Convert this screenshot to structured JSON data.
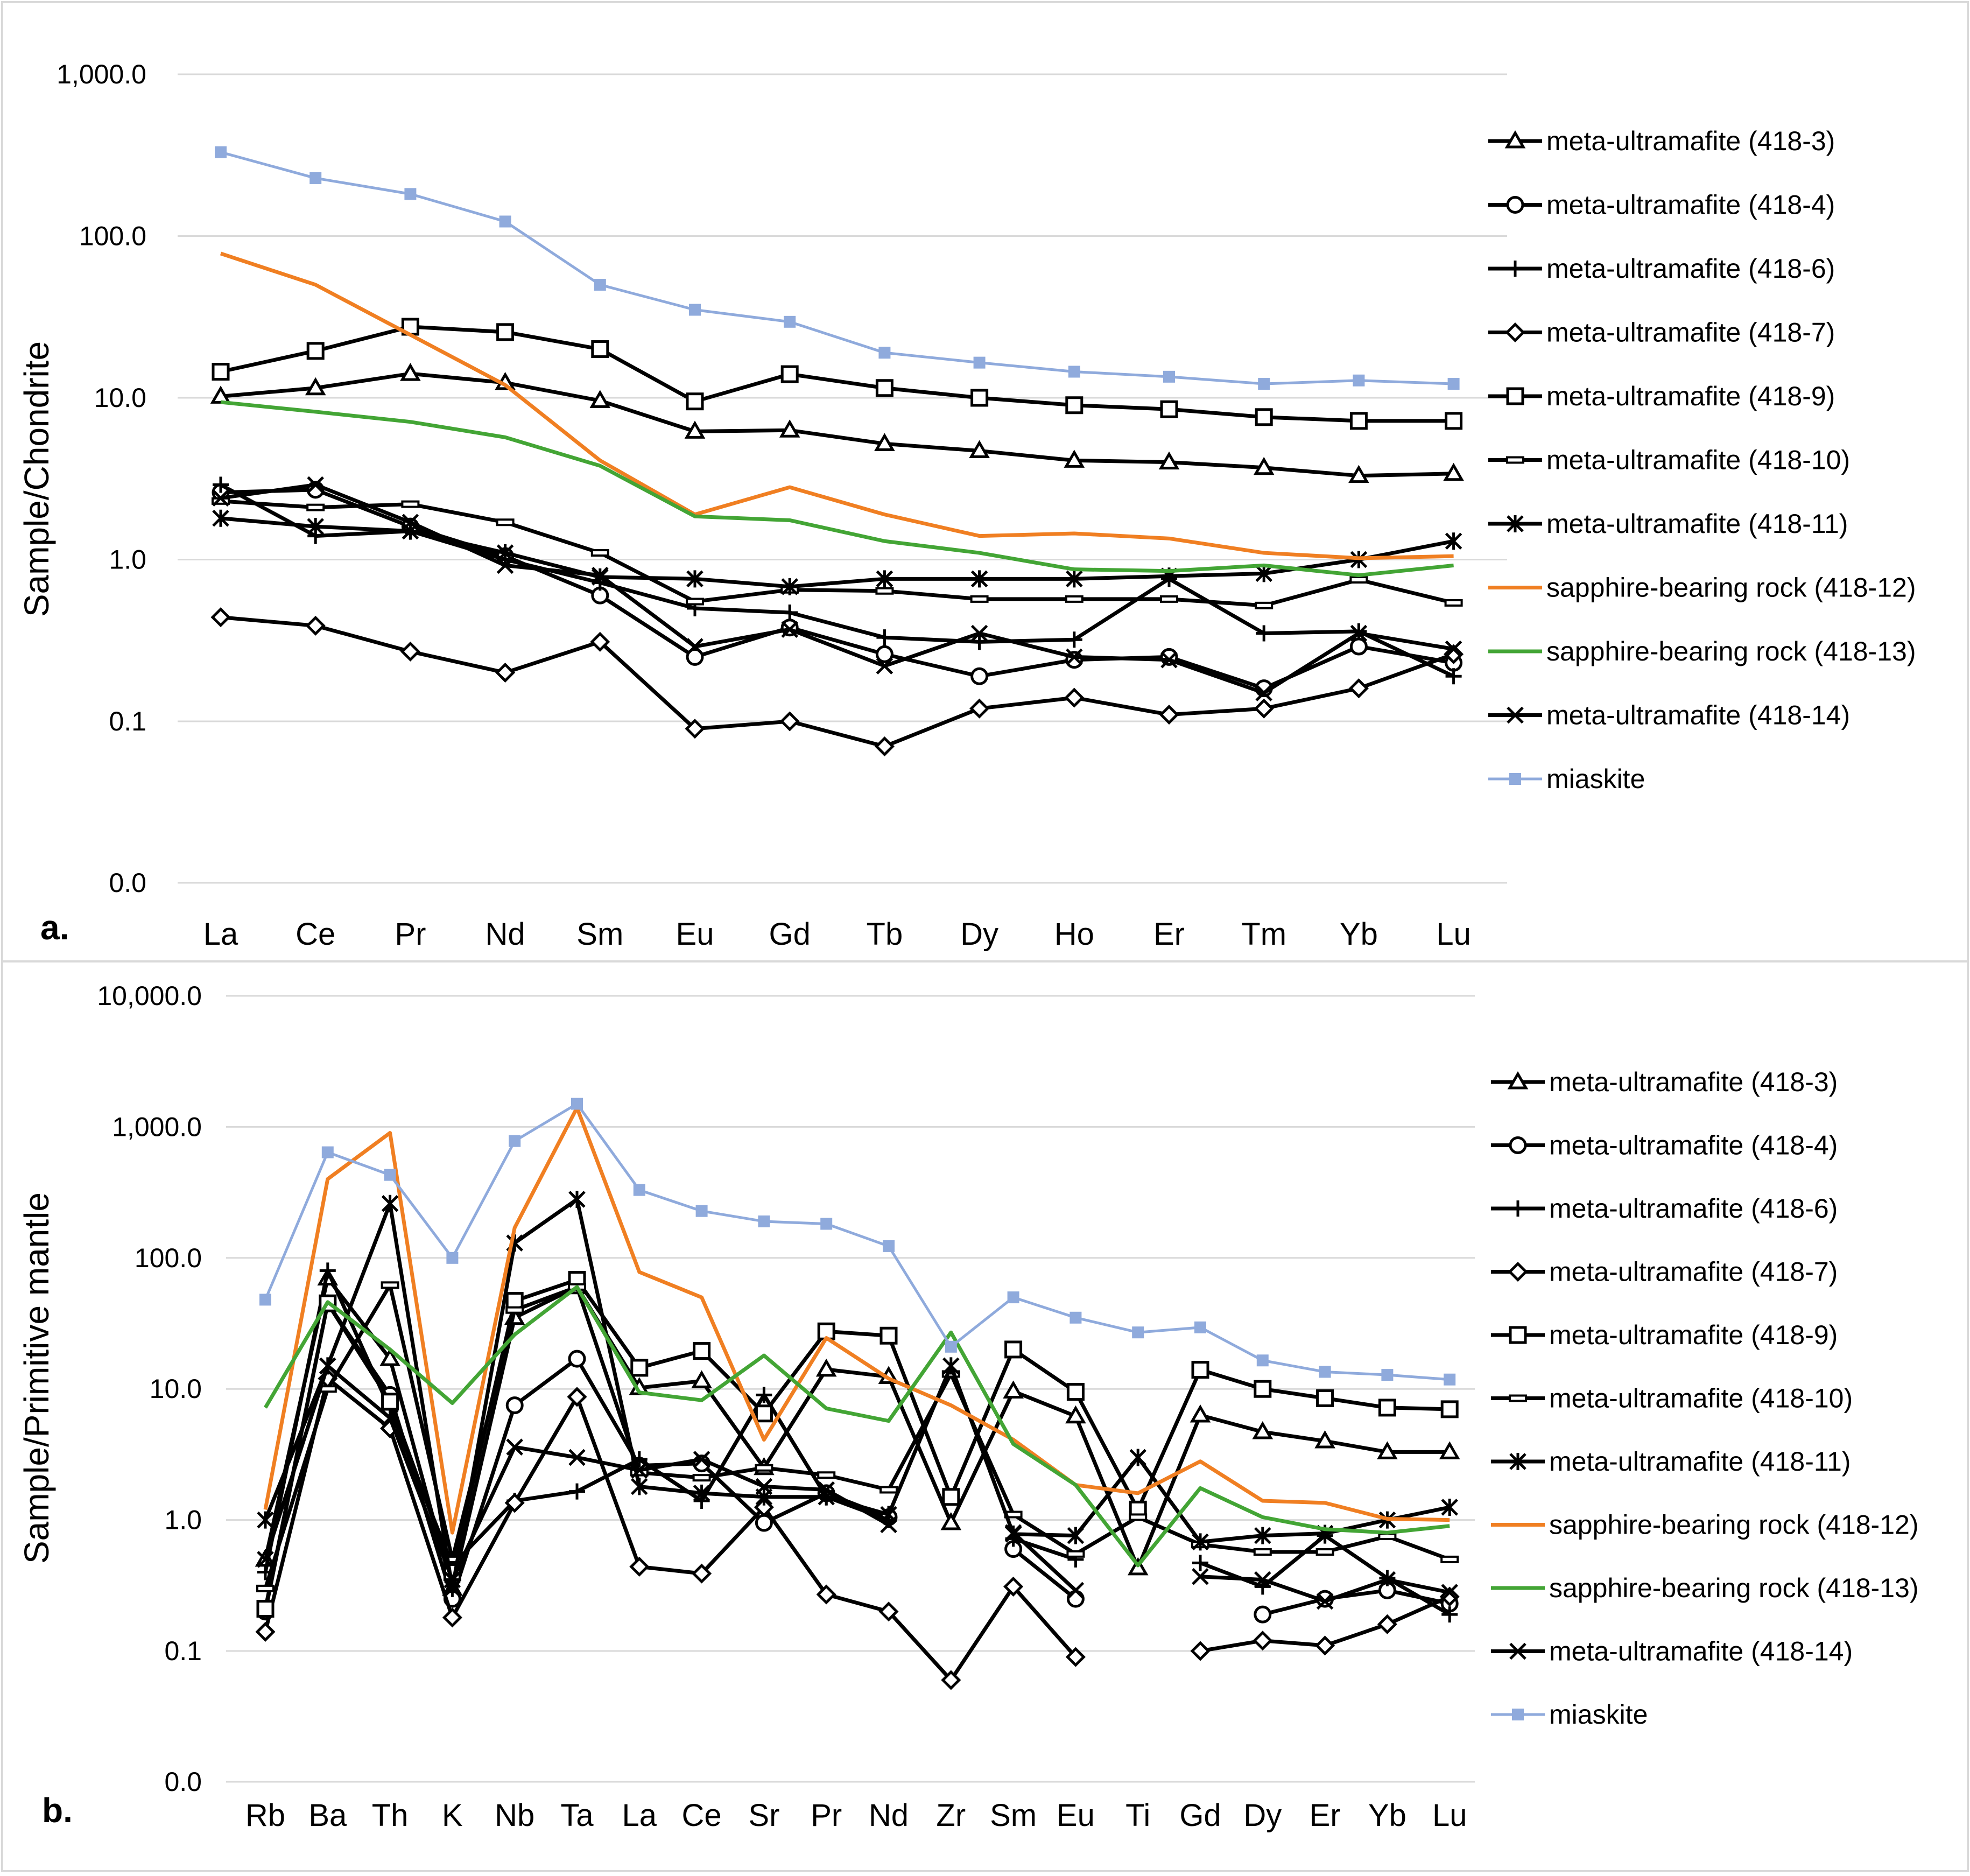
{
  "chart_data": [
    {
      "type": "line",
      "panel_label": "a.",
      "ylabel": "Sample/Chondrite",
      "yscale": "log",
      "y_ticks": [
        "0.0",
        "0.1",
        "1.0",
        "10.0",
        "100.0",
        "1,000.0"
      ],
      "categories": [
        "La",
        "Ce",
        "Pr",
        "Nd",
        "Sm",
        "Eu",
        "Gd",
        "Tb",
        "Dy",
        "Ho",
        "Er",
        "Tm",
        "Yb",
        "Lu"
      ],
      "legend_position": "right",
      "series": [
        {
          "name": "meta-ultramafite (418-3)",
          "color": "#000000",
          "marker": "triangle",
          "values": [
            10.2,
            11.5,
            14.1,
            12.4,
            9.6,
            6.2,
            6.3,
            5.2,
            4.7,
            4.1,
            4.0,
            3.7,
            3.3,
            3.4
          ]
        },
        {
          "name": "meta-ultramafite (418-4)",
          "color": "#000000",
          "marker": "circle",
          "values": [
            2.6,
            2.7,
            1.6,
            1.05,
            0.6,
            0.25,
            0.38,
            0.26,
            0.19,
            0.24,
            0.25,
            0.16,
            0.29,
            0.23
          ]
        },
        {
          "name": "meta-ultramafite (418-6)",
          "color": "#000000",
          "marker": "plus",
          "values": [
            2.9,
            1.4,
            1.5,
            1.0,
            0.72,
            0.5,
            0.47,
            0.33,
            0.31,
            0.32,
            0.76,
            0.35,
            0.36,
            0.19
          ]
        },
        {
          "name": "meta-ultramafite (418-7)",
          "color": "#000000",
          "marker": "diamond",
          "values": [
            0.44,
            0.39,
            0.27,
            0.2,
            0.31,
            0.09,
            0.1,
            0.07,
            0.12,
            0.14,
            0.11,
            0.12,
            0.16,
            0.26
          ]
        },
        {
          "name": "meta-ultramafite (418-9)",
          "color": "#000000",
          "marker": "square",
          "values": [
            14.5,
            19.5,
            27.5,
            25.5,
            20.0,
            9.5,
            14.0,
            11.5,
            10.0,
            9.0,
            8.5,
            7.6,
            7.2,
            7.2
          ]
        },
        {
          "name": "meta-ultramafite (418-10)",
          "color": "#000000",
          "marker": "dash",
          "values": [
            2.3,
            2.1,
            2.2,
            1.7,
            1.1,
            0.55,
            0.65,
            0.64,
            0.57,
            0.57,
            0.57,
            0.52,
            0.75,
            0.54
          ]
        },
        {
          "name": "meta-ultramafite (418-11)",
          "color": "#000000",
          "marker": "star",
          "values": [
            1.8,
            1.6,
            1.5,
            1.1,
            0.78,
            0.76,
            0.68,
            0.76,
            0.76,
            0.76,
            0.79,
            0.82,
            1.0,
            1.3
          ]
        },
        {
          "name": "sapphire-bearing rock (418-12)",
          "color": "#f07f22",
          "marker": "none",
          "values": [
            78.0,
            50.0,
            24.5,
            12.0,
            4.1,
            1.9,
            2.8,
            1.9,
            1.4,
            1.45,
            1.35,
            1.1,
            1.02,
            1.05
          ]
        },
        {
          "name": "sapphire-bearing rock (418-13)",
          "color": "#43a535",
          "marker": "none",
          "values": [
            9.4,
            8.2,
            7.1,
            5.7,
            3.8,
            1.85,
            1.75,
            1.3,
            1.1,
            0.87,
            0.85,
            0.92,
            0.8,
            0.92
          ]
        },
        {
          "name": "meta-ultramafite (418-14)",
          "color": "#000000",
          "marker": "cross",
          "values": [
            2.4,
            2.9,
            1.7,
            0.92,
            0.8,
            0.29,
            0.37,
            0.22,
            0.35,
            0.25,
            0.24,
            0.15,
            0.35,
            0.28
          ]
        },
        {
          "name": "miaskite",
          "color": "#8faadc",
          "marker": "filled-square",
          "values": [
            330.0,
            228.0,
            182.0,
            123.0,
            50.0,
            35.0,
            29.5,
            19.0,
            16.5,
            14.5,
            13.5,
            12.2,
            12.8,
            12.2
          ]
        }
      ]
    },
    {
      "type": "line",
      "panel_label": "b.",
      "ylabel": "Sample/Primitive mantle",
      "yscale": "log",
      "y_ticks": [
        "0.0",
        "0.1",
        "1.0",
        "10.0",
        "100.0",
        "1,000.0",
        "10,000.0"
      ],
      "categories": [
        "Rb",
        "Ba",
        "Th",
        "K",
        "Nb",
        "Ta",
        "La",
        "Ce",
        "Sr",
        "Pr",
        "Nd",
        "Zr",
        "Sm",
        "Eu",
        "Ti",
        "Gd",
        "Dy",
        "Er",
        "Yb",
        "Lu"
      ],
      "legend_position": "right",
      "series": [
        {
          "name": "meta-ultramafite (418-3)",
          "color": "#000000",
          "marker": "triangle",
          "values": [
            0.5,
            70.0,
            17.0,
            0.3,
            35.0,
            60.0,
            10.2,
            11.5,
            2.5,
            14.1,
            12.4,
            0.95,
            9.6,
            6.2,
            0.43,
            6.3,
            4.7,
            4.0,
            3.3,
            3.3
          ]
        },
        {
          "name": "meta-ultramafite (418-4)",
          "color": "#000000",
          "marker": "circle",
          "values": [
            0.2,
            45.0,
            9.0,
            0.25,
            7.5,
            17.0,
            2.6,
            2.7,
            0.95,
            1.6,
            1.05,
            null,
            0.6,
            0.25,
            null,
            null,
            0.19,
            0.25,
            0.29,
            0.23
          ]
        },
        {
          "name": "meta-ultramafite (418-6)",
          "color": "#000000",
          "marker": "plus",
          "values": [
            0.4,
            80.0,
            7.0,
            0.45,
            1.4,
            1.65,
            2.9,
            1.4,
            9.0,
            1.5,
            1.0,
            null,
            0.72,
            0.5,
            null,
            0.47,
            0.31,
            0.76,
            0.36,
            0.19
          ]
        },
        {
          "name": "meta-ultramafite (418-7)",
          "color": "#000000",
          "marker": "diamond",
          "values": [
            0.14,
            12.0,
            5.0,
            0.18,
            1.35,
            8.7,
            0.44,
            0.39,
            1.25,
            0.27,
            0.2,
            0.06,
            0.31,
            0.09,
            null,
            0.1,
            0.12,
            0.11,
            0.16,
            0.26
          ]
        },
        {
          "name": "meta-ultramafite (418-9)",
          "color": "#000000",
          "marker": "square",
          "values": [
            0.21,
            45.0,
            8.0,
            0.4,
            47.0,
            68.0,
            14.5,
            19.5,
            6.5,
            27.5,
            25.5,
            1.5,
            20.0,
            9.5,
            1.2,
            14.0,
            10.0,
            8.5,
            7.2,
            7.0
          ]
        },
        {
          "name": "meta-ultramafite (418-10)",
          "color": "#000000",
          "marker": "dash",
          "values": [
            0.3,
            10.0,
            62.0,
            0.5,
            40.0,
            60.0,
            2.3,
            2.1,
            2.5,
            2.2,
            1.7,
            13.0,
            1.1,
            0.55,
            1.05,
            0.65,
            0.57,
            0.57,
            0.75,
            0.5
          ]
        },
        {
          "name": "meta-ultramafite (418-11)",
          "color": "#000000",
          "marker": "star",
          "values": [
            1.0,
            15.0,
            260.0,
            0.3,
            130.0,
            280.0,
            1.8,
            1.6,
            1.5,
            1.5,
            1.1,
            15.0,
            0.78,
            0.76,
            3.0,
            0.68,
            0.76,
            0.79,
            1.0,
            1.25
          ]
        },
        {
          "name": "sapphire-bearing rock (418-12)",
          "color": "#f07f22",
          "marker": "none",
          "values": [
            1.2,
            400.0,
            900.0,
            0.8,
            170.0,
            1400.0,
            78.0,
            50.0,
            4.1,
            24.5,
            12.0,
            7.5,
            4.1,
            1.85,
            1.6,
            2.8,
            1.4,
            1.35,
            1.02,
            1.0
          ]
        },
        {
          "name": "sapphire-bearing rock (418-13)",
          "color": "#43a535",
          "marker": "none",
          "values": [
            7.2,
            46.0,
            20.0,
            7.8,
            26.0,
            60.0,
            9.4,
            8.2,
            18.0,
            7.1,
            5.7,
            27.0,
            3.8,
            1.85,
            0.45,
            1.75,
            1.05,
            0.85,
            0.8,
            0.9
          ]
        },
        {
          "name": "meta-ultramafite (418-14)",
          "color": "#000000",
          "marker": "cross",
          "values": [
            0.5,
            15.0,
            6.0,
            0.35,
            3.6,
            3.0,
            2.4,
            2.9,
            1.8,
            1.7,
            0.92,
            null,
            0.8,
            0.29,
            null,
            0.37,
            0.35,
            0.24,
            0.35,
            0.28
          ]
        },
        {
          "name": "miaskite",
          "color": "#8faadc",
          "marker": "filled-square",
          "values": [
            48.0,
            640.0,
            430.0,
            100.0,
            780.0,
            1500.0,
            330.0,
            228.0,
            190.0,
            182.0,
            123.0,
            21.0,
            50.0,
            35.0,
            27.0,
            29.5,
            16.5,
            13.5,
            12.8,
            11.8
          ]
        }
      ]
    }
  ]
}
